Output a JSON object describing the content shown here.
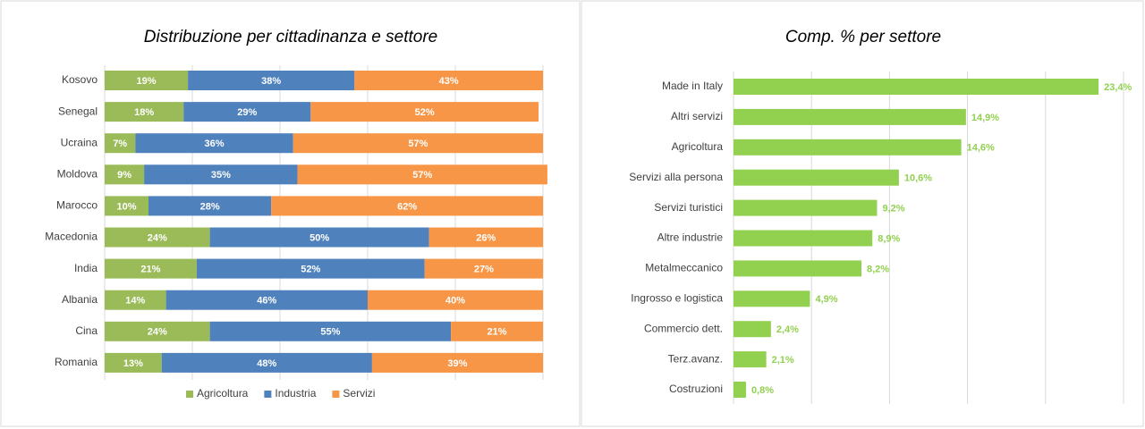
{
  "chart_data": [
    {
      "type": "stacked_bar_h",
      "title": "Distribuzione per cittadinanza e settore",
      "categories": [
        "Kosovo",
        "Senegal",
        "Ucraina",
        "Moldova",
        "Marocco",
        "Macedonia",
        "India",
        "Albania",
        "Cina",
        "Romania"
      ],
      "series": [
        {
          "name": "Agricoltura",
          "color": "#9bbb59",
          "values": [
            19,
            18,
            7,
            9,
            10,
            24,
            21,
            14,
            24,
            13
          ],
          "value_labels": [
            "19%",
            "18%",
            "7%",
            "9%",
            "10%",
            "24%",
            "21%",
            "14%",
            "24%",
            "13%"
          ]
        },
        {
          "name": "Industria",
          "color": "#4f81bd",
          "values": [
            38,
            29,
            36,
            35,
            28,
            50,
            52,
            46,
            55,
            48
          ],
          "value_labels": [
            "38%",
            "29%",
            "36%",
            "35%",
            "28%",
            "50%",
            "52%",
            "46%",
            "55%",
            "48%"
          ]
        },
        {
          "name": "Servizi",
          "color": "#f79646",
          "values": [
            43,
            52,
            57,
            57,
            62,
            26,
            27,
            40,
            21,
            39
          ],
          "value_labels": [
            "43%",
            "52%",
            "57%",
            "57%",
            "62%",
            "26%",
            "27%",
            "40%",
            "21%",
            "39%"
          ]
        }
      ],
      "xlim": [
        0,
        100
      ],
      "xticks": [
        0,
        20,
        40,
        60,
        80,
        100
      ],
      "grid": true,
      "legend": "bottom"
    },
    {
      "type": "bar_h",
      "title": "Comp. % per settore",
      "categories": [
        "Made in Italy",
        "Altri servizi",
        "Agricoltura",
        "Servizi alla persona",
        "Servizi turistici",
        "Altre industrie",
        "Metalmeccanico",
        "Ingrosso e logistica",
        "Commercio dett.",
        "Terz.avanz.",
        "Costruzioni"
      ],
      "values": [
        23.4,
        14.9,
        14.6,
        10.6,
        9.2,
        8.9,
        8.2,
        4.9,
        2.4,
        2.1,
        0.8
      ],
      "value_labels": [
        "23,4%",
        "14,9%",
        "14,6%",
        "10,6%",
        "9,2%",
        "8,9%",
        "8,2%",
        "4,9%",
        "2,4%",
        "2,1%",
        "0,8%"
      ],
      "color": "#92d050",
      "xlim": [
        0,
        25
      ],
      "xticks": [
        0,
        5,
        10,
        15,
        20,
        25
      ],
      "grid": true
    }
  ]
}
